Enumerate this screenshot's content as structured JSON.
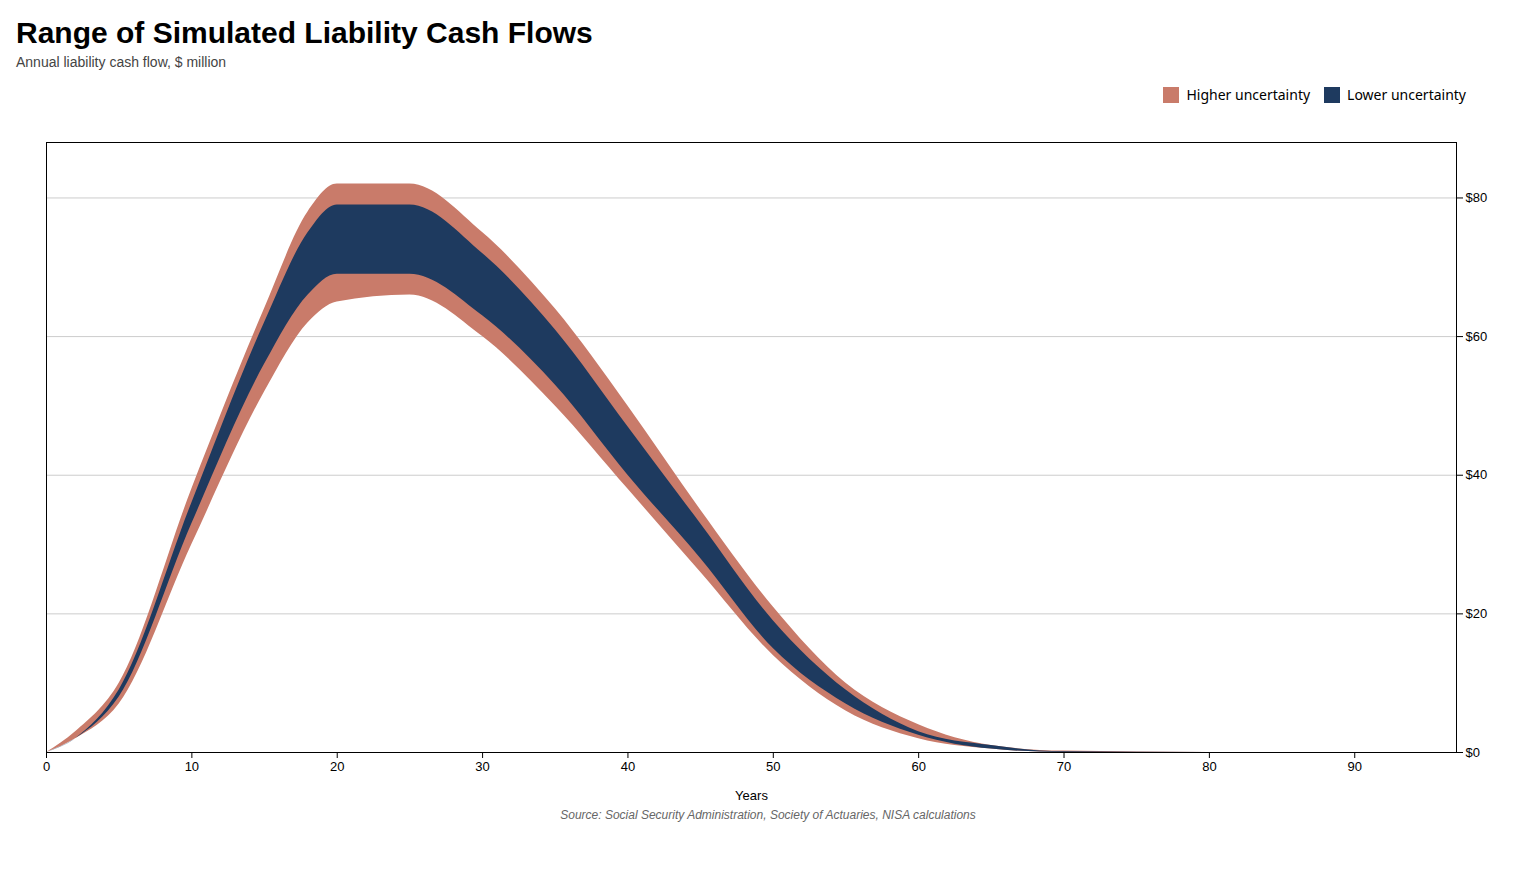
{
  "chart_data": {
    "type": "area",
    "title": "Range of Simulated Liability Cash Flows",
    "subtitle": "Annual liability cash flow, $ million",
    "xlabel": "Years",
    "caption": "Source: Social Security Administration, Society of Actuaries, NISA calculations",
    "x": [
      0,
      2,
      5,
      10,
      15,
      18,
      20,
      25,
      30,
      35,
      40,
      45,
      50,
      55,
      60,
      65,
      70,
      80,
      97
    ],
    "series": [
      {
        "name": "Higher uncertainty",
        "color": "#c97b6a",
        "upper": [
          0,
          3,
          10,
          38,
          64,
          78,
          82,
          82,
          75,
          64,
          50,
          35,
          21,
          10,
          4,
          1,
          0.2,
          0,
          0
        ],
        "lower": [
          0,
          2,
          7,
          30,
          52,
          62,
          65,
          66,
          60,
          50,
          38,
          26,
          14,
          6,
          2,
          0.5,
          0,
          0,
          0
        ]
      },
      {
        "name": "Lower uncertainty",
        "color": "#1e3a5f",
        "upper": [
          0,
          2,
          9,
          36,
          62,
          75,
          79,
          79,
          72,
          61,
          47,
          33,
          19,
          9,
          3,
          1,
          0.1,
          0,
          0
        ],
        "lower": [
          0,
          2,
          8,
          33,
          56,
          66,
          69,
          69,
          63,
          53,
          40,
          28,
          15,
          7,
          2.5,
          0.5,
          0,
          0,
          0
        ]
      }
    ],
    "xlim": [
      0,
      97
    ],
    "xticks": [
      0,
      10,
      20,
      30,
      40,
      50,
      60,
      70,
      80,
      90
    ],
    "ylim": [
      0,
      88
    ],
    "yticks": [
      {
        "value": 0,
        "label": "$0"
      },
      {
        "value": 20,
        "label": "$20"
      },
      {
        "value": 40,
        "label": "$40"
      },
      {
        "value": 60,
        "label": "$60"
      },
      {
        "value": 80,
        "label": "$80"
      }
    ],
    "grid": true,
    "legend": "top-right"
  }
}
